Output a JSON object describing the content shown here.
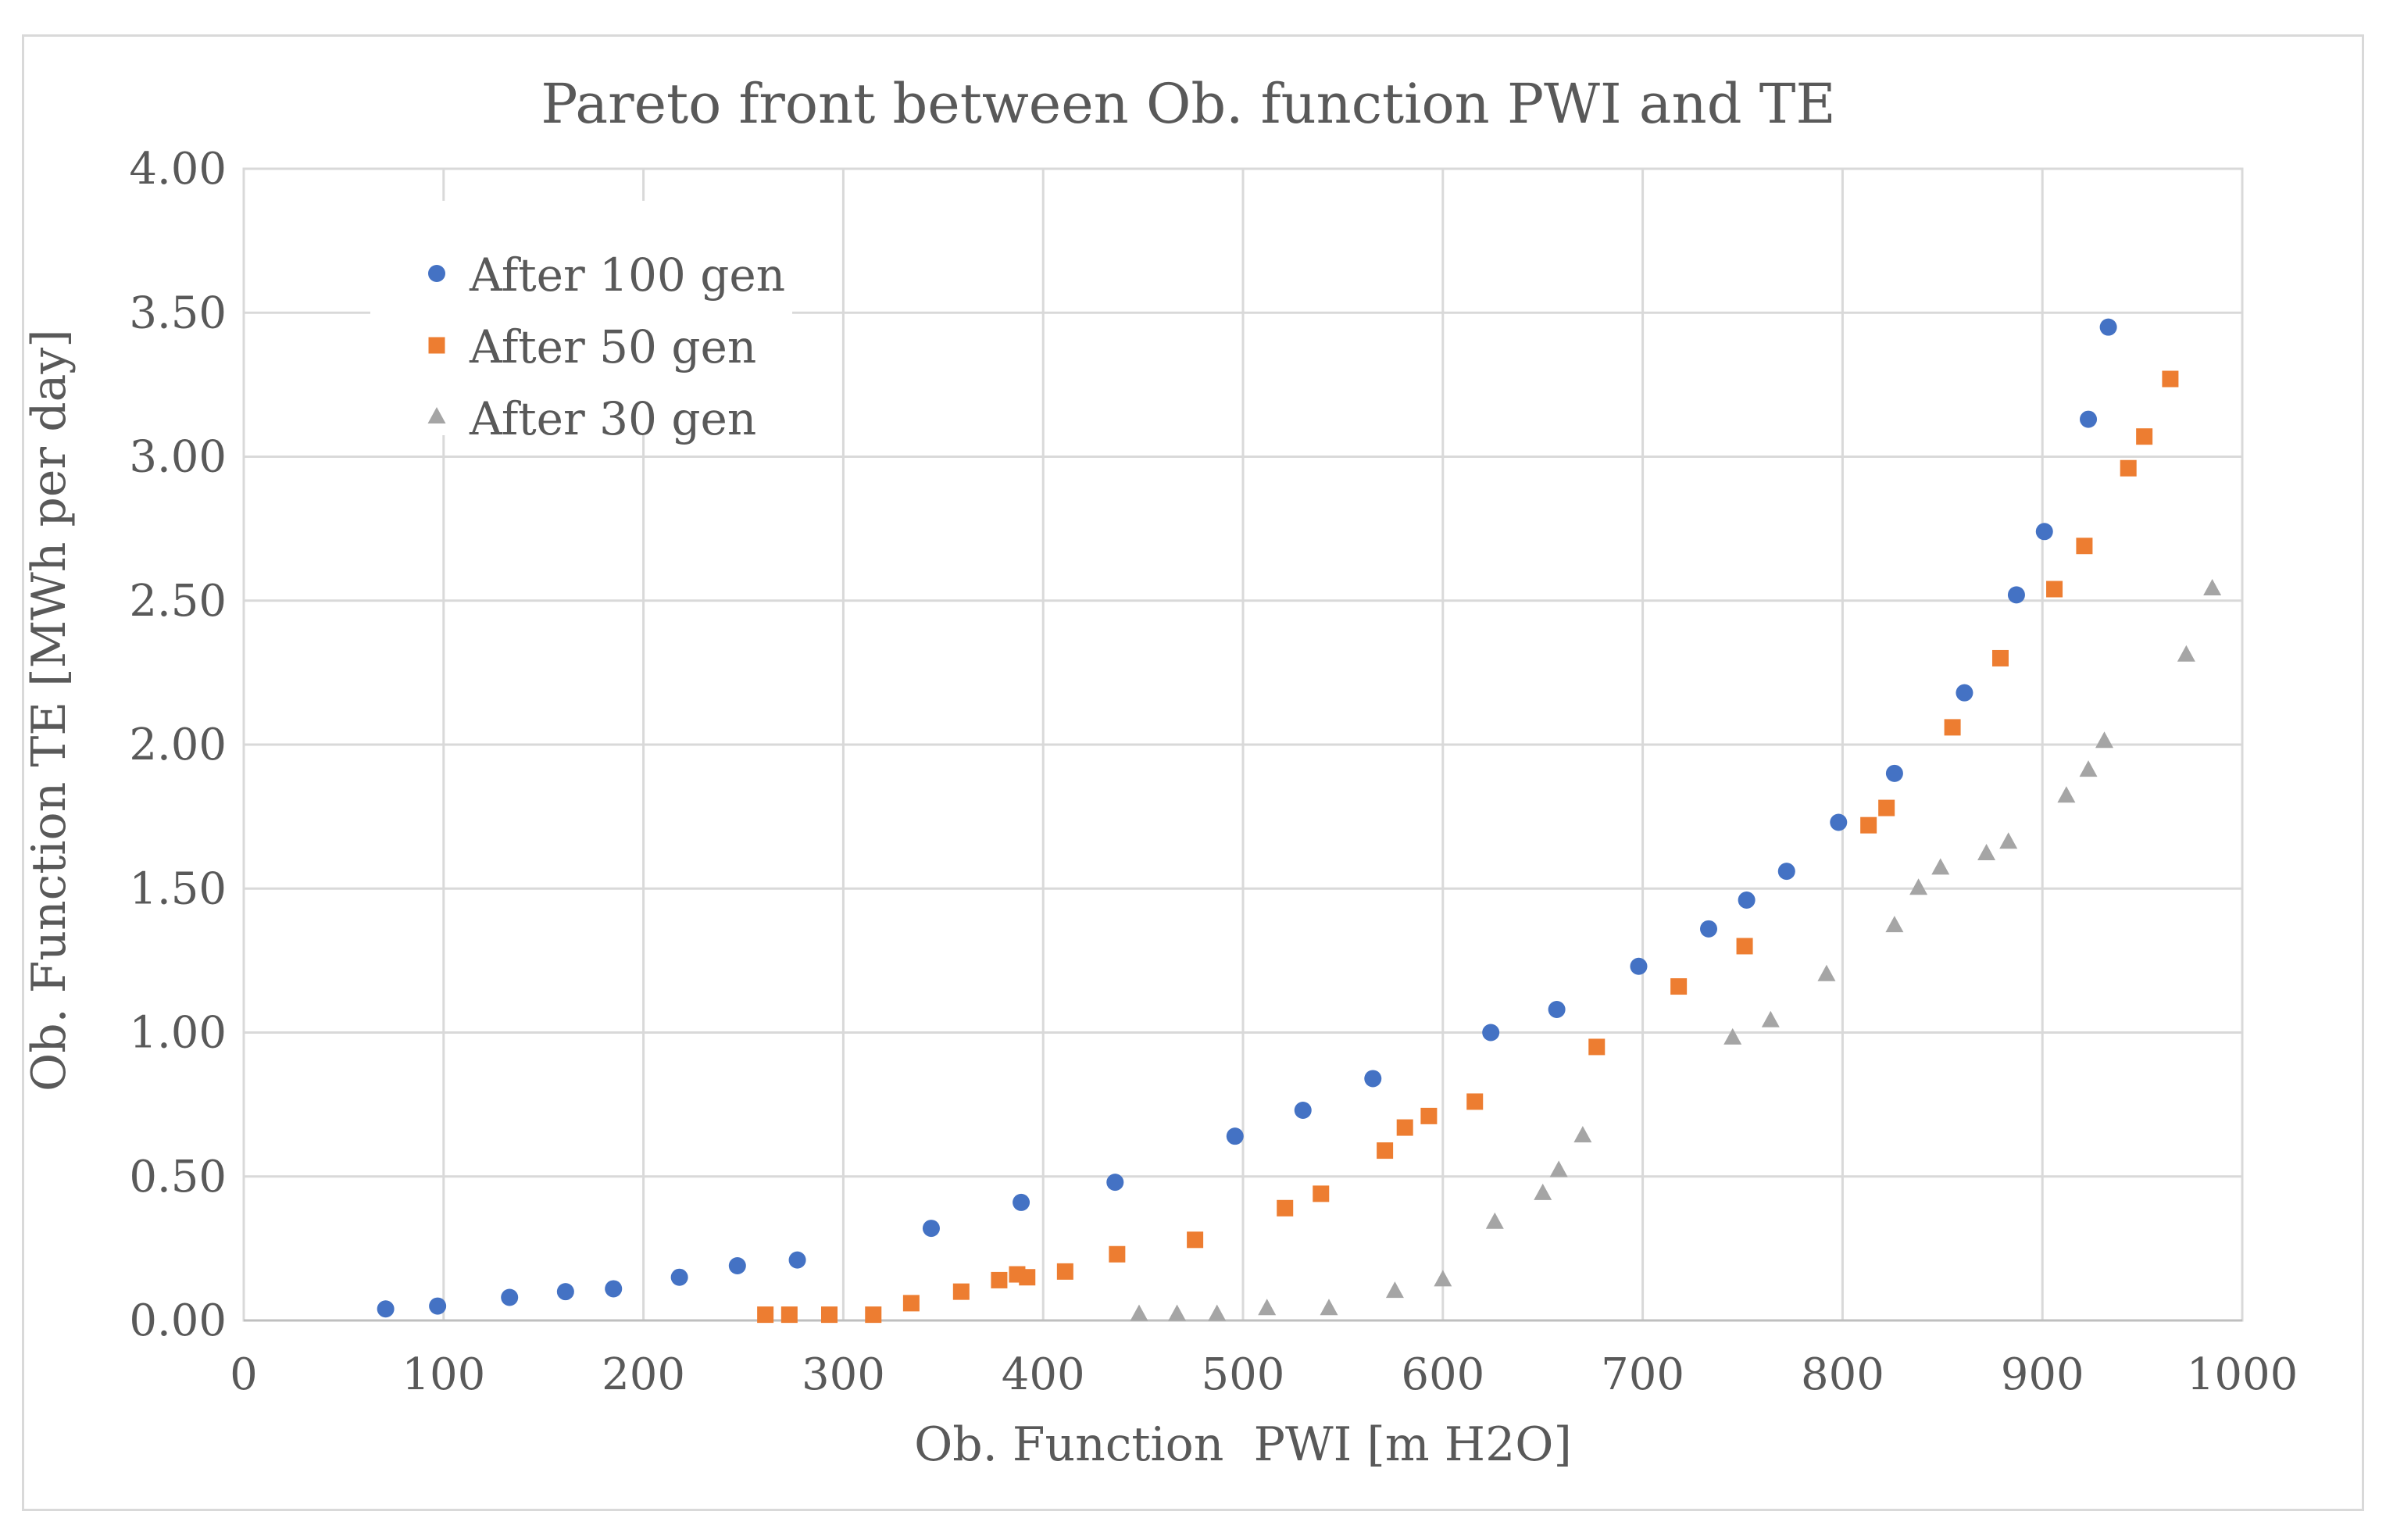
{
  "chart_data": {
    "type": "scatter",
    "title": "Pareto front between Ob. function PWI and TE",
    "xlabel": "Ob. Function  PWI [m H2O]",
    "ylabel": "Ob. Function TE [MWh per day]",
    "xlim": [
      0,
      1000
    ],
    "ylim": [
      0,
      4
    ],
    "xticks": [
      0,
      100,
      200,
      300,
      400,
      500,
      600,
      700,
      800,
      900,
      1000
    ],
    "yticks": [
      0,
      0.5,
      1,
      1.5,
      2,
      2.5,
      3,
      3.5,
      4
    ],
    "xtick_labels": [
      "0",
      "100",
      "200",
      "300",
      "400",
      "500",
      "600",
      "700",
      "800",
      "900",
      "1000"
    ],
    "ytick_labels": [
      "0.00",
      "0.50",
      "1.00",
      "1.50",
      "2.00",
      "2.50",
      "3.00",
      "3.50",
      "4.00"
    ],
    "grid": true,
    "legend_position": "top-left",
    "series": [
      {
        "name": "After 100 gen",
        "color": "#4472c4",
        "marker": "circle",
        "points": [
          [
            71,
            0.04
          ],
          [
            97,
            0.05
          ],
          [
            133,
            0.08
          ],
          [
            161,
            0.1
          ],
          [
            185,
            0.11
          ],
          [
            218,
            0.15
          ],
          [
            247,
            0.19
          ],
          [
            277,
            0.21
          ],
          [
            344,
            0.32
          ],
          [
            389,
            0.41
          ],
          [
            436,
            0.48
          ],
          [
            496,
            0.64
          ],
          [
            530,
            0.73
          ],
          [
            565,
            0.84
          ],
          [
            624,
            1.0
          ],
          [
            657,
            1.08
          ],
          [
            698,
            1.23
          ],
          [
            733,
            1.36
          ],
          [
            752,
            1.46
          ],
          [
            772,
            1.56
          ],
          [
            798,
            1.73
          ],
          [
            826,
            1.9
          ],
          [
            861,
            2.18
          ],
          [
            887,
            2.52
          ],
          [
            901,
            2.74
          ],
          [
            923,
            3.13
          ],
          [
            933,
            3.45
          ]
        ]
      },
      {
        "name": "After 50 gen",
        "color": "#ed7d31",
        "marker": "square",
        "points": [
          [
            261,
            0.02
          ],
          [
            273,
            0.02
          ],
          [
            293,
            0.02
          ],
          [
            315,
            0.02
          ],
          [
            334,
            0.06
          ],
          [
            359,
            0.1
          ],
          [
            378,
            0.14
          ],
          [
            387,
            0.16
          ],
          [
            392,
            0.15
          ],
          [
            411,
            0.17
          ],
          [
            437,
            0.23
          ],
          [
            476,
            0.28
          ],
          [
            521,
            0.39
          ],
          [
            539,
            0.44
          ],
          [
            571,
            0.59
          ],
          [
            581,
            0.67
          ],
          [
            593,
            0.71
          ],
          [
            616,
            0.76
          ],
          [
            677,
            0.95
          ],
          [
            718,
            1.16
          ],
          [
            751,
            1.3
          ],
          [
            813,
            1.72
          ],
          [
            822,
            1.78
          ],
          [
            855,
            2.06
          ],
          [
            879,
            2.3
          ],
          [
            906,
            2.54
          ],
          [
            921,
            2.69
          ],
          [
            943,
            2.96
          ],
          [
            951,
            3.07
          ],
          [
            964,
            3.27
          ]
        ]
      },
      {
        "name": "After 30 gen",
        "color": "#a5a5a5",
        "marker": "triangle",
        "points": [
          [
            448,
            0.02
          ],
          [
            467,
            0.02
          ],
          [
            487,
            0.02
          ],
          [
            512,
            0.04
          ],
          [
            543,
            0.04
          ],
          [
            576,
            0.1
          ],
          [
            600,
            0.14
          ],
          [
            626,
            0.34
          ],
          [
            650,
            0.44
          ],
          [
            658,
            0.52
          ],
          [
            670,
            0.64
          ],
          [
            745,
            0.98
          ],
          [
            764,
            1.04
          ],
          [
            792,
            1.2
          ],
          [
            826,
            1.37
          ],
          [
            838,
            1.5
          ],
          [
            849,
            1.57
          ],
          [
            872,
            1.62
          ],
          [
            883,
            1.66
          ],
          [
            912,
            1.82
          ],
          [
            923,
            1.91
          ],
          [
            931,
            2.01
          ],
          [
            972,
            2.31
          ],
          [
            985,
            2.54
          ]
        ]
      }
    ]
  }
}
